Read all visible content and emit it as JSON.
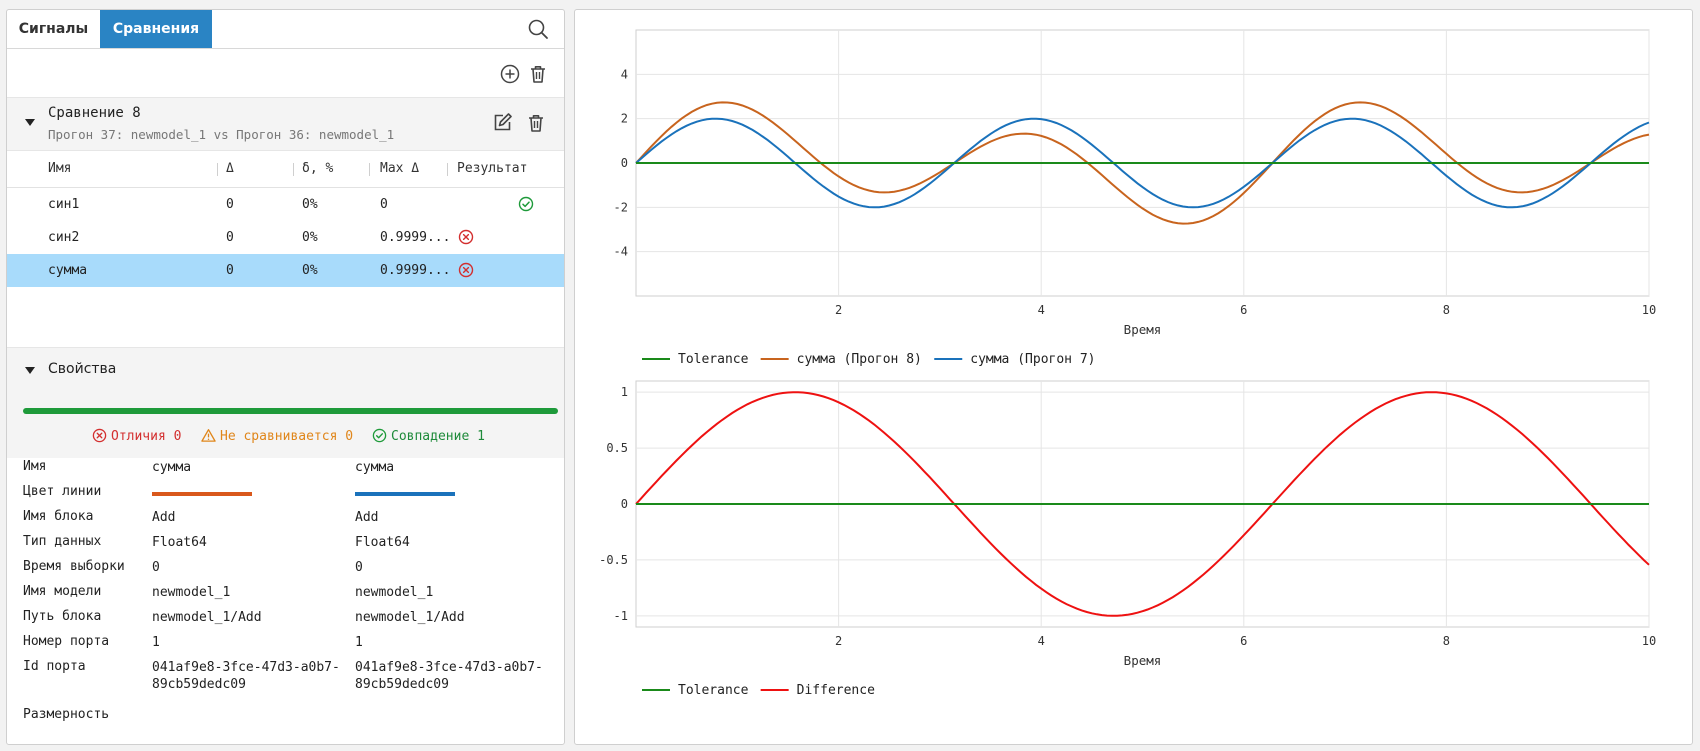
{
  "tabs": [
    {
      "label": "Сигналы"
    },
    {
      "label": "Сравнения"
    }
  ],
  "comparison": {
    "title": "Сравнение 8",
    "subtitle": "Прогон 37: newmodel_1 vs Прогон 36: newmodel_1"
  },
  "table": {
    "columns": [
      "Имя",
      "Δ",
      "δ, %",
      "Max Δ",
      "Результат"
    ],
    "rows": [
      {
        "name": "син1",
        "delta": "0",
        "delta_pct": "0%",
        "max_delta": "0",
        "result": "ok"
      },
      {
        "name": "син2",
        "delta": "0",
        "delta_pct": "0%",
        "max_delta": "0.9999...",
        "result": "fail"
      },
      {
        "name": "сумма",
        "delta": "0",
        "delta_pct": "0%",
        "max_delta": "0.9999...",
        "result": "fail"
      }
    ]
  },
  "properties": {
    "title": "Свойства",
    "stats": {
      "differences": "Отличия 0",
      "not_compared": "Не сравнивается 0",
      "matches": "Совпадение 1"
    },
    "rows": [
      {
        "label": "Имя",
        "left": "сумма",
        "right": "сумма"
      },
      {
        "label": "Цвет линии",
        "left_color": "#d9581c",
        "right_color": "#1a72bb"
      },
      {
        "label": "Имя блока",
        "left": "Add",
        "right": "Add"
      },
      {
        "label": "Тип данных",
        "left": "Float64",
        "right": "Float64"
      },
      {
        "label": "Время выборки",
        "left": "0",
        "right": "0"
      },
      {
        "label": "Имя модели",
        "left": "newmodel_1",
        "right": "newmodel_1"
      },
      {
        "label": "Путь блока",
        "left": "newmodel_1/Add",
        "right": "newmodel_1/Add"
      },
      {
        "label": "Номер порта",
        "left": "1",
        "right": "1"
      },
      {
        "label": "Id порта",
        "left_line1": "041af9e8-3fce-47d3-a0b7-",
        "left_line2": "89cb59dedc09",
        "right_line1": "041af9e8-3fce-47d3-a0b7-",
        "right_line2": "89cb59dedc09"
      },
      {
        "label": "Размерность"
      }
    ]
  },
  "colors": {
    "accent": "#2a84c4",
    "selected_row": "#a8dbfb",
    "ok": "#1e9a3a",
    "error": "#d32f2f",
    "warning": "#e0861a"
  },
  "chart_data": [
    {
      "type": "line",
      "xlabel": "Время",
      "xlim": [
        0,
        10
      ],
      "ylim": [
        -6,
        6
      ],
      "xticks": [
        2,
        4,
        6,
        8,
        10
      ],
      "yticks": [
        4,
        2,
        0,
        -2,
        -4
      ],
      "grid": true,
      "legend_position": "bottom-left",
      "series": [
        {
          "name": "Tolerance",
          "color": "#1a8a1a",
          "x": [
            0,
            10
          ],
          "y": [
            0,
            0
          ]
        },
        {
          "name": "сумма (Прогон 8)",
          "color": "#c8641e",
          "function": "sin(x) + 2*sin(2x)",
          "x_step": 0.05
        },
        {
          "name": "сумма (Прогон 7)",
          "color": "#1a72bb",
          "function": "2*sin(2x)",
          "x_step": 0.05
        }
      ]
    },
    {
      "type": "line",
      "xlabel": "Время",
      "xlim": [
        0,
        10
      ],
      "ylim": [
        -1.1,
        1.1
      ],
      "xticks": [
        2,
        4,
        6,
        8,
        10
      ],
      "yticks": [
        1,
        0.5,
        0,
        -0.5,
        -1
      ],
      "grid": true,
      "legend_position": "bottom-left",
      "series": [
        {
          "name": "Tolerance",
          "color": "#1a8a1a",
          "x": [
            0,
            10
          ],
          "y": [
            0,
            0
          ]
        },
        {
          "name": "Difference",
          "color": "#ee1111",
          "function": "sin(x)",
          "x_step": 0.05
        }
      ]
    }
  ]
}
